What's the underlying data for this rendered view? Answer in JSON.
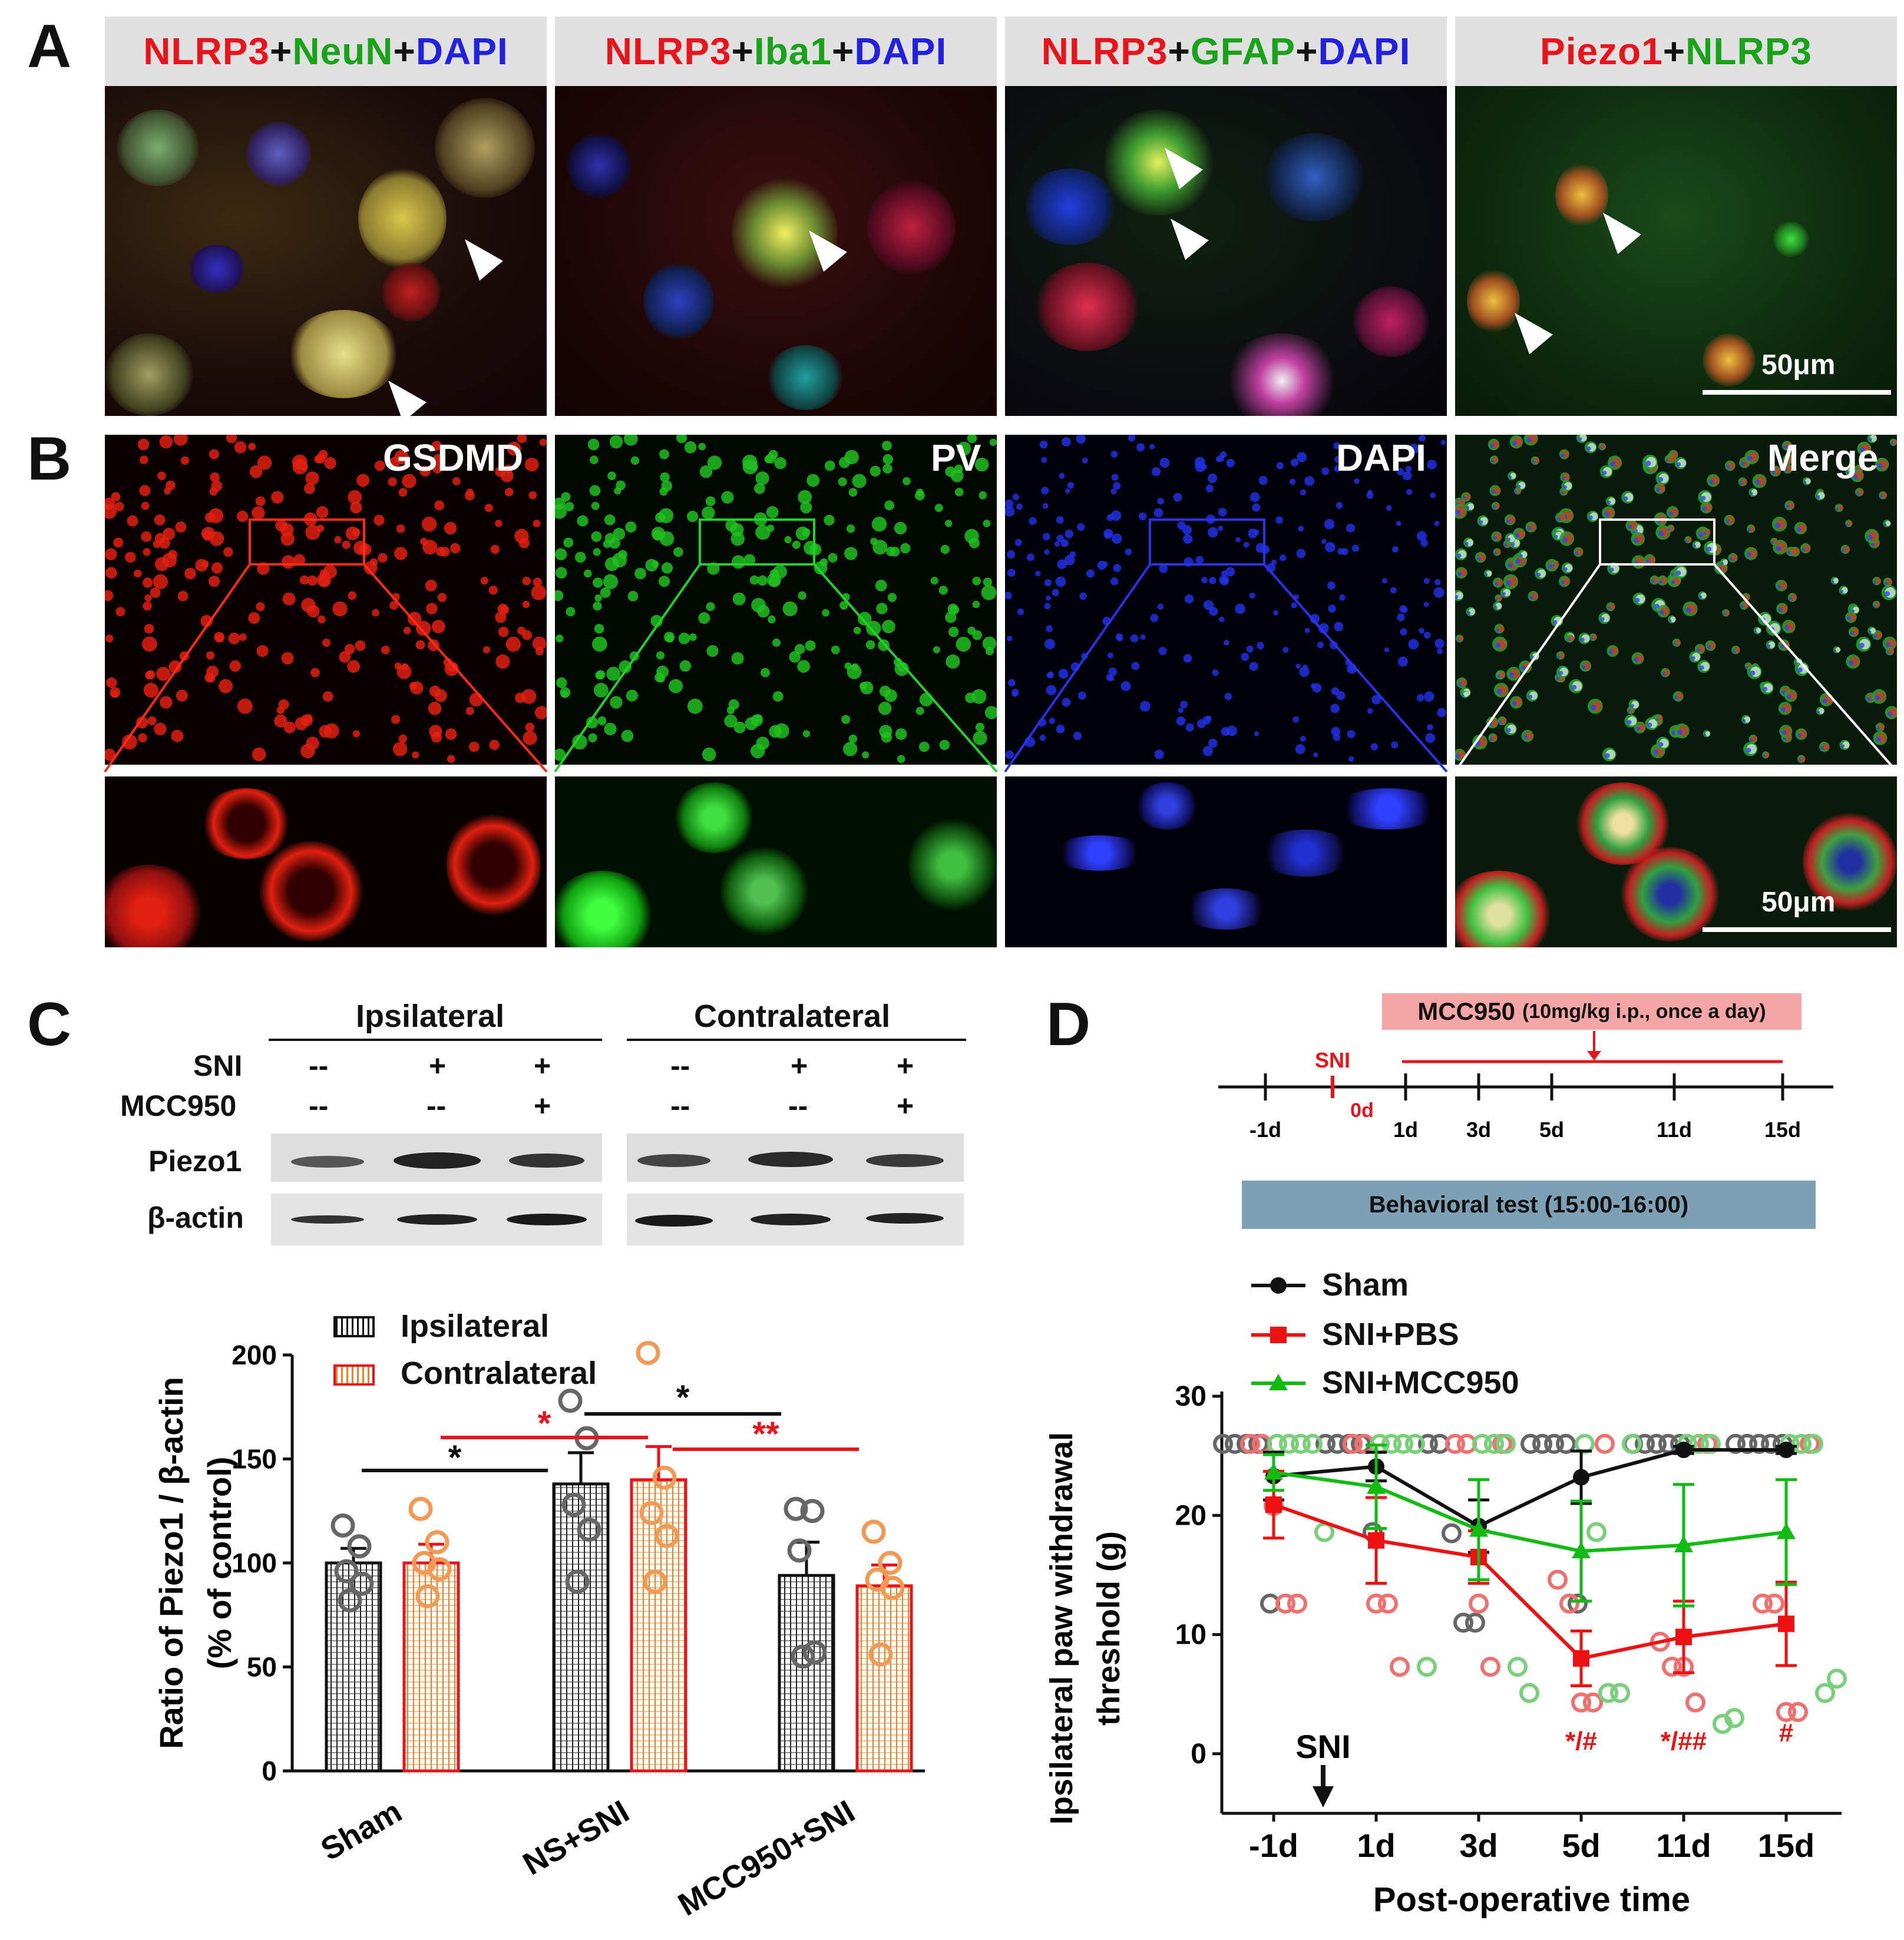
{
  "panel_a": {
    "label": "A",
    "headers": [
      [
        {
          "t": "NLRP3",
          "c": "#e8141c"
        },
        {
          "t": "+",
          "c": "#111111"
        },
        {
          "t": "NeuN",
          "c": "#1aa21a"
        },
        {
          "t": "+",
          "c": "#111111"
        },
        {
          "t": "DAPI",
          "c": "#2222dd"
        }
      ],
      [
        {
          "t": "NLRP3",
          "c": "#e8141c"
        },
        {
          "t": "+",
          "c": "#111111"
        },
        {
          "t": "Iba1",
          "c": "#1aa21a"
        },
        {
          "t": "+",
          "c": "#111111"
        },
        {
          "t": "DAPI",
          "c": "#2222dd"
        }
      ],
      [
        {
          "t": "NLRP3",
          "c": "#e8141c"
        },
        {
          "t": "+",
          "c": "#111111"
        },
        {
          "t": "GFAP",
          "c": "#1aa21a"
        },
        {
          "t": "+",
          "c": "#111111"
        },
        {
          "t": "DAPI",
          "c": "#2222dd"
        }
      ],
      [
        {
          "t": "Piezo1",
          "c": "#e8141c"
        },
        {
          "t": "+",
          "c": "#111111"
        },
        {
          "t": "NLRP3",
          "c": "#1aa21a"
        }
      ]
    ],
    "scale_bar": "50μm"
  },
  "panel_b": {
    "label": "B",
    "titles": [
      "GSDMD",
      "PV",
      "DAPI",
      "Merge"
    ],
    "scale_bar": "50μm",
    "colors": [
      "#ff2a1a",
      "#22d02a",
      "#2a32e8",
      "merge"
    ]
  },
  "panel_c": {
    "label": "C",
    "blot": {
      "ipsi_label": "Ipsilateral",
      "contra_label": "Contralateral",
      "row_labels": [
        "SNI",
        "MCC950"
      ],
      "sni_signs": [
        "--",
        "+",
        "+",
        "--",
        "+",
        "+"
      ],
      "mcc_signs": [
        "--",
        "--",
        "+",
        "--",
        "--",
        "+"
      ],
      "band_labels": [
        "Piezo1",
        "β-actin"
      ]
    },
    "chart_data": {
      "type": "bar",
      "categories": [
        "Sham",
        "NS+SNI",
        "MCC950+SNI"
      ],
      "series": [
        {
          "name": "Ipsilateral",
          "values": [
            100,
            138,
            94
          ],
          "sem": [
            7,
            15,
            16
          ],
          "points": [
            [
              118,
              108,
              96,
              90,
              82
            ],
            [
              178,
              160,
              128,
              116,
              91
            ],
            [
              126,
              125,
              106,
              57,
              55
            ]
          ]
        },
        {
          "name": "Contralateral",
          "values": [
            100,
            140,
            89
          ],
          "sem": [
            9,
            16,
            10
          ],
          "points": [
            [
              126,
              110,
              100,
              97,
              84
            ],
            [
              201,
              141,
              124,
              113,
              91
            ],
            [
              115,
              100,
              92,
              88,
              56
            ]
          ]
        }
      ],
      "ylabel": "Ratio of Piezo1 / β-actin\n(% of control)",
      "ylim": [
        0,
        200
      ],
      "yticks": [
        0,
        50,
        100,
        150,
        200
      ],
      "significance": [
        {
          "text": "*",
          "color": "#111111"
        },
        {
          "text": "*",
          "color": "#e8141c"
        },
        {
          "text": "*",
          "color": "#111111"
        },
        {
          "text": "**",
          "color": "#e8141c"
        }
      ],
      "colors": {
        "ipsi": "#111111",
        "contra": "#e8141c",
        "ipsi_dots": "#666666",
        "contra_dots": "#f09a55"
      }
    }
  },
  "panel_d": {
    "label": "D",
    "timeline": {
      "drug_box": "MCC950",
      "drug_detail": "(10mg/kg i.p., once a day)",
      "sni_label": "SNI",
      "zero_label": "0d",
      "ticks": [
        "-1d",
        "1d",
        "3d",
        "5d",
        "11d",
        "15d"
      ],
      "behavior_box": "Behavioral test (15:00-16:00)"
    },
    "legend": [
      {
        "name": "Sham",
        "color": "#111111",
        "marker": "circle"
      },
      {
        "name": "SNI+PBS",
        "color": "#ee1111",
        "marker": "square"
      },
      {
        "name": "SNI+MCC950",
        "color": "#11bb11",
        "marker": "triangle"
      }
    ],
    "chart_data": {
      "type": "line",
      "categories": [
        "-1d",
        "1d",
        "3d",
        "5d",
        "11d",
        "15d"
      ],
      "series": [
        {
          "name": "Sham",
          "values": [
            23.3,
            24.1,
            19.1,
            23.2,
            25.5,
            25.5
          ],
          "sem": [
            2.0,
            1.2,
            2.2,
            2.2,
            0.3,
            0.3
          ]
        },
        {
          "name": "SNI+PBS",
          "values": [
            20.9,
            17.9,
            16.5,
            8.0,
            9.8,
            10.9
          ],
          "sem": [
            2.8,
            3.6,
            2.2,
            2.3,
            3.0,
            3.5
          ]
        },
        {
          "name": "SNI+MCC950",
          "values": [
            23.6,
            22.4,
            18.8,
            17.0,
            17.5,
            18.6
          ],
          "sem": [
            1.5,
            3.5,
            4.2,
            4.2,
            5.1,
            4.4
          ]
        }
      ],
      "scatter": {
        "Sham": [
          [
            26,
            26,
            26,
            26,
            12.6
          ],
          [
            26,
            26,
            26,
            26,
            18.6
          ],
          [
            26,
            26,
            18.5,
            11,
            11
          ],
          [
            26,
            26,
            26,
            26,
            12.6
          ],
          [
            26,
            26,
            26,
            26,
            26
          ],
          [
            26,
            26,
            26,
            26,
            26
          ]
        ],
        "SNI+PBS": [
          [
            26,
            26,
            20.8,
            12.6,
            12.6
          ],
          [
            26,
            26,
            12.6,
            12.6,
            7.3
          ],
          [
            26,
            26,
            12.6,
            7.3,
            26
          ],
          [
            14.6,
            12.6,
            4.3,
            4.3,
            26
          ],
          [
            9.4,
            7.3,
            7.3,
            4.3,
            26
          ],
          [
            12.6,
            12.6,
            3.5,
            3.5,
            26
          ]
        ],
        "SNI+MCC950": [
          [
            26,
            26,
            26,
            26,
            18.6
          ],
          [
            26,
            26,
            26,
            26,
            7.3
          ],
          [
            26,
            26,
            26,
            7.3,
            5.1
          ],
          [
            26,
            18.6,
            5.1,
            5.1,
            26
          ],
          [
            26,
            26,
            26,
            2.5,
            3.0
          ],
          [
            26,
            26,
            26,
            5.1,
            6.3
          ]
        ]
      },
      "xlabel": "Post-operative time",
      "ylabel": "Ipsilateral paw withdrawal\nthreshold (g)",
      "ylim": [
        -5,
        30
      ],
      "yticks": [
        0,
        10,
        20,
        30
      ],
      "annotations": [
        "*/#",
        "*/##",
        "#"
      ],
      "sni_marker": "SNI"
    }
  }
}
